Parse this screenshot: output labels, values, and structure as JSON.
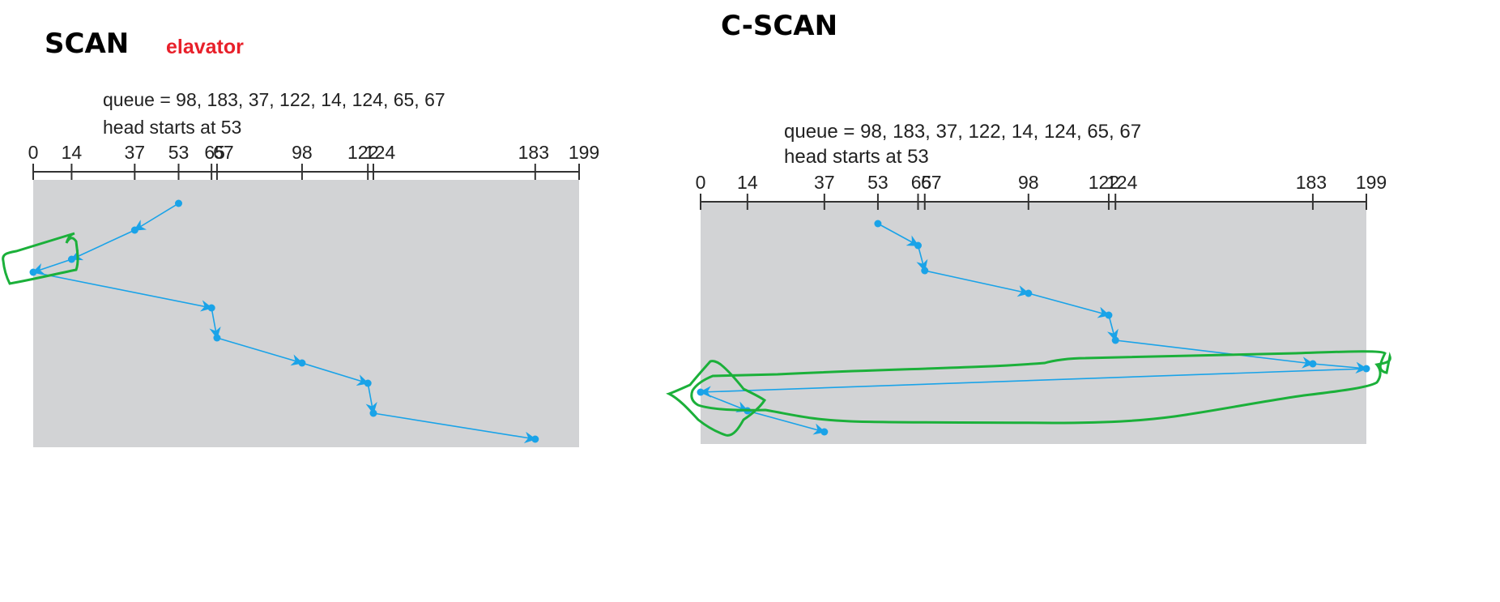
{
  "scan": {
    "title": "SCAN",
    "note": "elavator",
    "queue_text": "queue = 98, 183, 37, 122, 14, 124, 65, 67",
    "head_text": "head starts at 53",
    "ticks": [
      "0",
      "14",
      "37",
      "53",
      "65",
      "67",
      "98",
      "122",
      "124",
      "183",
      "199"
    ]
  },
  "cscan": {
    "title": "C-SCAN",
    "queue_text": "queue = 98, 183, 37, 122, 14, 124, 65, 67",
    "head_text": "head starts at 53",
    "ticks": [
      "0",
      "14",
      "37",
      "53",
      "65",
      "67",
      "98",
      "122",
      "124",
      "183",
      "199"
    ]
  },
  "colors": {
    "path": "#1aa3e8",
    "panel": "#d2d3d5",
    "annotation": "#1bb03a",
    "note": "#e8202a"
  }
}
